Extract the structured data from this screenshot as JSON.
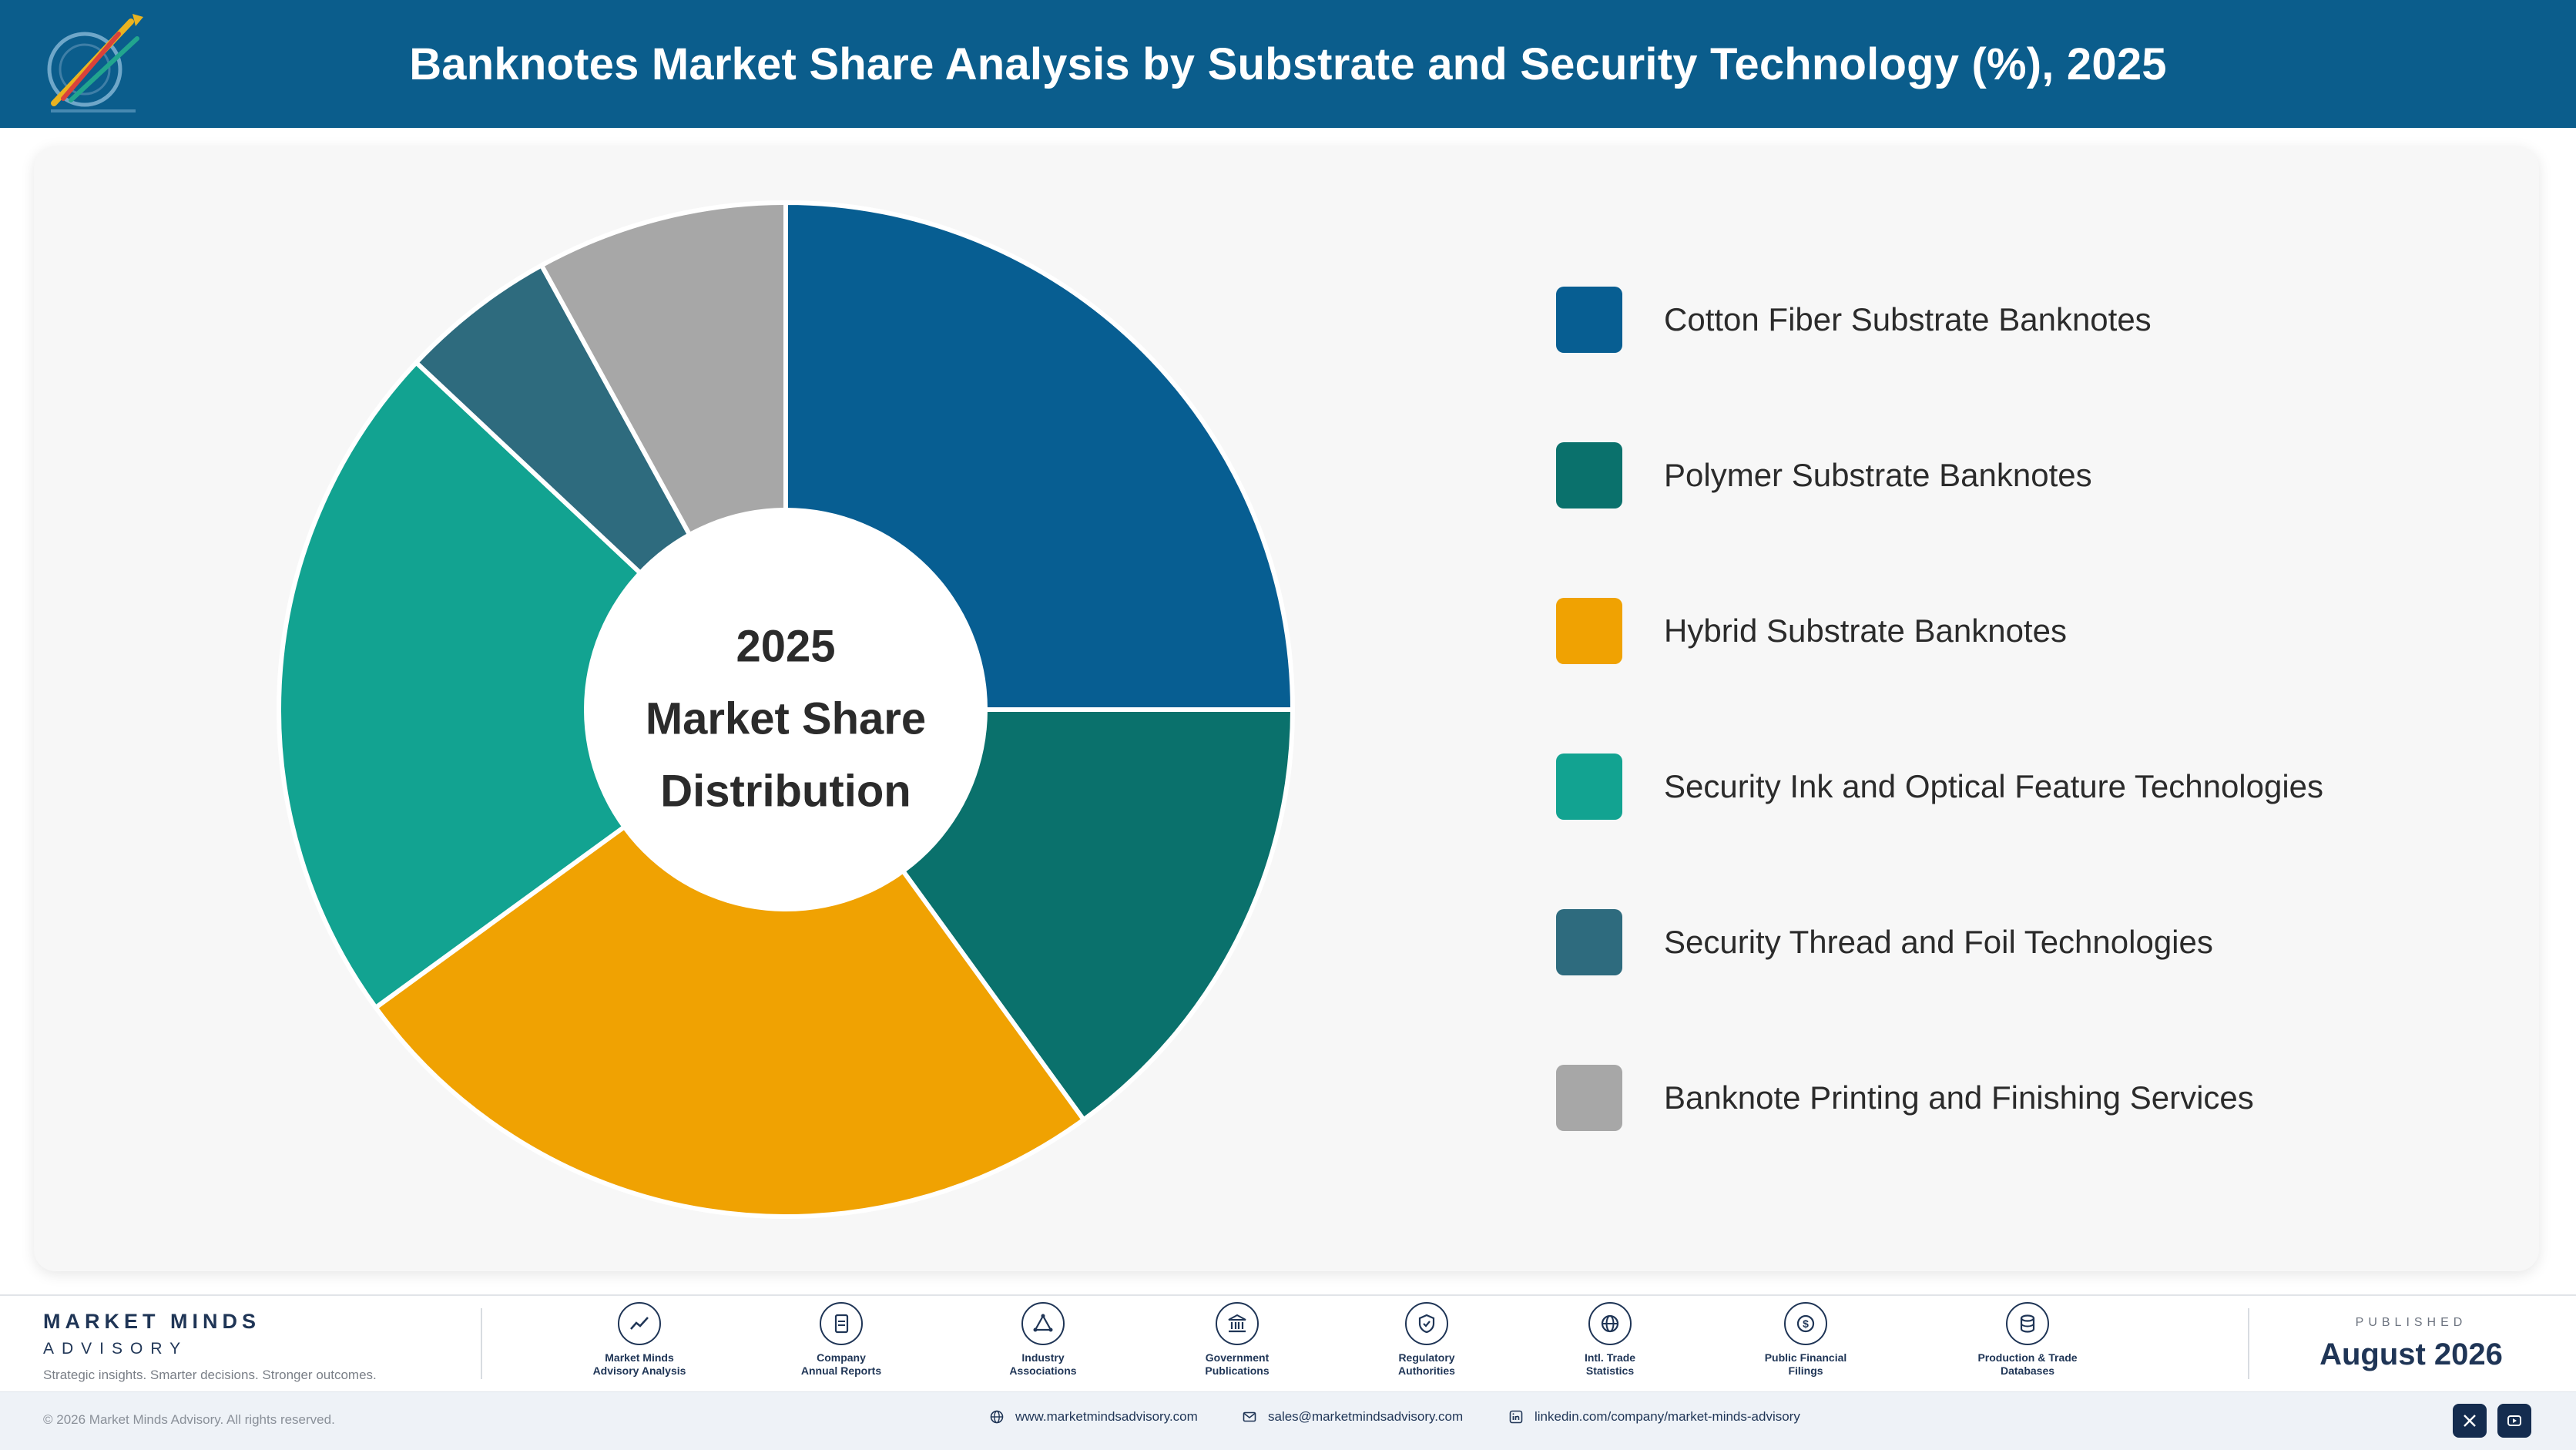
{
  "header": {
    "title": "Banknotes Market Share Analysis by Substrate and Security Technology (%), 2025"
  },
  "chart_data": {
    "type": "pie",
    "variant": "donut",
    "title": "Banknotes Market Share Analysis by Substrate and Security Technology (%), 2025",
    "center_label": [
      "2025",
      "Market Share",
      "Distribution"
    ],
    "categories": [
      "Cotton Fiber Substrate Banknotes",
      "Polymer Substrate Banknotes",
      "Hybrid Substrate Banknotes",
      "Security Ink and Optical Feature Technologies",
      "Security Thread and Foil Technologies",
      "Banknote Printing and Finishing Services"
    ],
    "values": [
      25,
      15,
      25,
      22,
      5,
      8
    ],
    "colors": [
      "#075e92",
      "#0a716c",
      "#f0a202",
      "#12a391",
      "#2e6b7e",
      "#a7a7a7"
    ],
    "legend_position": "right"
  },
  "footer": {
    "brand_name": "MARKET MINDS",
    "brand_sub": "ADVISORY",
    "tagline": "Strategic insights. Smarter decisions. Stronger outcomes.",
    "sources": [
      {
        "icon": "chart-line-icon",
        "label_line1": "Market Minds",
        "label_line2": "Advisory Analysis"
      },
      {
        "icon": "document-icon",
        "label_line1": "Company",
        "label_line2": "Annual Reports"
      },
      {
        "icon": "network-icon",
        "label_line1": "Industry",
        "label_line2": "Associations"
      },
      {
        "icon": "government-building-icon",
        "label_line1": "Government",
        "label_line2": "Publications"
      },
      {
        "icon": "shield-check-icon",
        "label_line1": "Regulatory",
        "label_line2": "Authorities"
      },
      {
        "icon": "globe-icon",
        "label_line1": "Intl. Trade",
        "label_line2": "Statistics"
      },
      {
        "icon": "dollar-coin-icon",
        "label_line1": "Public Financial",
        "label_line2": "Filings"
      },
      {
        "icon": "database-icon",
        "label_line1": "Production & Trade",
        "label_line2": "Databases"
      }
    ],
    "published_label": "PUBLISHED",
    "published_date": "August 2026",
    "copyright": "© 2026 Market Minds Advisory. All rights reserved.",
    "website": "www.marketmindsadvisory.com",
    "email": "sales@marketmindsadvisory.com",
    "linkedin": "linkedin.com/company/market-minds-advisory"
  }
}
